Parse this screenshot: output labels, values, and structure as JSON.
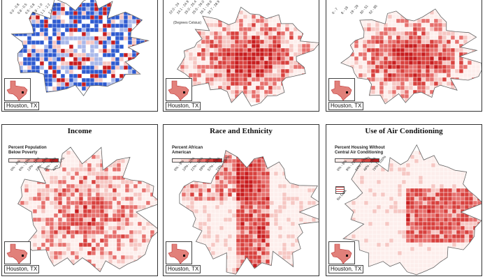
{
  "colors": {
    "red_dark": "#c81d1f",
    "red_mid": "#e6706d",
    "red_light": "#f6c7c3",
    "red_pale": "#fdeeec",
    "blue": "#2f5bd0",
    "blue_light": "#a9b8ea"
  },
  "panels": [
    {
      "id": "top-left",
      "title": "",
      "legend_title": "",
      "legend_ticks": [
        "0.0 - 0.8",
        "0.8 - 0.5",
        "0.5 - 0.8",
        "0.8 - 1.0",
        "1.1 - 2.2",
        "2.2 - 7.9"
      ],
      "units": "",
      "city_label": "Houston, TX"
    },
    {
      "id": "top-middle",
      "title": "",
      "legend_title": "",
      "legend_ticks": [
        "22.0 - 24",
        "24.1 - 24.9",
        "25.0 - 25.4",
        "25.5 - 26.0",
        "26.1 - 26.6",
        "26.7 - 28.9"
      ],
      "units": "(Degrees Celsius)",
      "city_label": "Houston, TX"
    },
    {
      "id": "top-right",
      "title": "",
      "legend_title": "",
      "legend_ticks": [
        "0 - 7",
        "8 - 18",
        "19 - 29",
        "30 - 51",
        "52 - 85"
      ],
      "units": "",
      "city_label": "Houston, TX"
    },
    {
      "id": "bottom-left",
      "title": "Income",
      "legend_title": "Percent Population\nBelow Poverty",
      "legend_ticks": [
        "0% - 6%",
        "6% - 12%",
        "13% - 19%",
        "20% - 29%",
        "30% - 42%",
        "43% - 67%"
      ],
      "units": "",
      "city_label": "Houston, TX"
    },
    {
      "id": "bottom-middle",
      "title": "Race and Ethnicity",
      "legend_title": "Percent African\nAmerican",
      "legend_ticks": [
        "0% - 9%",
        "10% - 20%",
        "21% - 38%",
        "39% - 56%",
        "57% - 73%",
        "74% - 100%"
      ],
      "units": "",
      "city_label": "Houston, TX"
    },
    {
      "id": "bottom-right",
      "title": "Use of Air Conditioning",
      "legend_title": "Percent Housing Without\nCentral Air Conditioning",
      "legend_ticks": [
        "0% - 8%",
        "9% - 23%",
        "24% - 47%",
        "48% - 75%",
        "76% - 100%"
      ],
      "no_data_label": "No Data",
      "units": "",
      "city_label": "Houston, TX"
    }
  ]
}
